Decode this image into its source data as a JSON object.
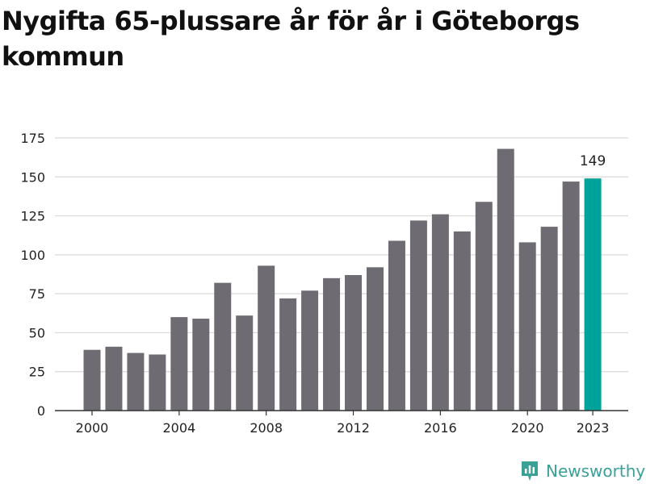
{
  "title": "Nygifta 65-plussare år för år i Göteborgs kommun",
  "brand": "Newsworthy",
  "colors": {
    "bar": "#6e6c72",
    "highlight": "#00a39a",
    "grid": "#d9d9d9",
    "text": "#222222",
    "brand": "#3aa199"
  },
  "chart_data": {
    "type": "bar",
    "x": [
      2000,
      2001,
      2002,
      2003,
      2004,
      2005,
      2006,
      2007,
      2008,
      2009,
      2010,
      2011,
      2012,
      2013,
      2014,
      2015,
      2016,
      2017,
      2018,
      2019,
      2020,
      2021,
      2022,
      2023
    ],
    "values": [
      39,
      41,
      37,
      36,
      60,
      59,
      82,
      61,
      93,
      72,
      77,
      85,
      87,
      92,
      109,
      122,
      126,
      115,
      134,
      168,
      108,
      118,
      147,
      149
    ],
    "highlight": 2023,
    "data_labels": [
      {
        "x": 2023,
        "label": "149"
      }
    ],
    "xticks": [
      "2000",
      "2004",
      "2008",
      "2012",
      "2016",
      "2020",
      "2023"
    ],
    "yticks": [
      "0",
      "25",
      "50",
      "75",
      "100",
      "125",
      "150",
      "175"
    ],
    "ylim": [
      0,
      175
    ],
    "grid": true,
    "legend": "none"
  }
}
